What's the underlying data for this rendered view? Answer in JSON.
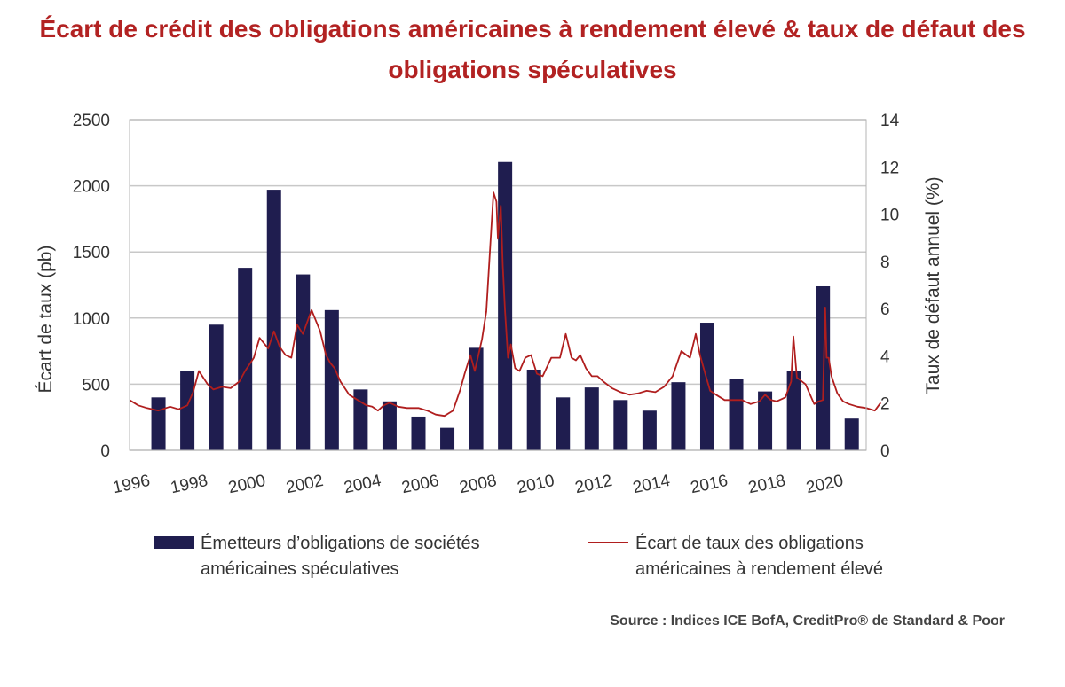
{
  "title": "Écart de crédit des obligations américaines à rendement élevé & taux de défaut des obligations spéculatives",
  "source": "Source : Indices ICE BofA, CreditPro® de Standard & Poor",
  "colors": {
    "bars": "#1f1d4f",
    "line": "#b01e1e",
    "grid": "#c8c8c8",
    "title": "#b22222"
  },
  "chart_data": {
    "type": "bar",
    "xlabel": "",
    "ylabel": "Écart de taux (pb)",
    "y2label": "Taux de défaut annuel (%)",
    "ylim": [
      0,
      2500
    ],
    "y2lim": [
      0,
      14
    ],
    "yticks": [
      "0",
      "500",
      "1000",
      "1500",
      "2000",
      "2500"
    ],
    "y2ticks": [
      "0",
      "2",
      "4",
      "6",
      "8",
      "10",
      "12",
      "14"
    ],
    "xticks": [
      "1996",
      "1998",
      "2000",
      "2002",
      "2004",
      "2006",
      "2008",
      "2010",
      "2012",
      "2014",
      "2016",
      "2018",
      "2020"
    ],
    "grid": true,
    "legend_position": "bottom",
    "series": [
      {
        "name": "Émetteurs d’obligations de sociétés américaines spéculatives",
        "type": "bar",
        "axis": "left",
        "categories": [
          "1997",
          "1998",
          "1999",
          "2000",
          "2001",
          "2002",
          "2003",
          "2004",
          "2005",
          "2006",
          "2007",
          "2008",
          "2009",
          "2010",
          "2011",
          "2012",
          "2013",
          "2014",
          "2015",
          "2016",
          "2017",
          "2018",
          "2019",
          "2020",
          "2021"
        ],
        "values": [
          400,
          600,
          950,
          1380,
          1970,
          1330,
          1060,
          460,
          370,
          255,
          170,
          775,
          2180,
          610,
          400,
          475,
          380,
          300,
          515,
          965,
          540,
          445,
          600,
          1240,
          240
        ]
      },
      {
        "name": "Écart de taux des obligations américaines à rendement élevé",
        "type": "line",
        "axis": "left",
        "x": [
          1996.0,
          1996.3,
          1996.6,
          1997.0,
          1997.4,
          1997.7,
          1998.0,
          1998.2,
          1998.4,
          1998.7,
          1998.9,
          1999.2,
          1999.5,
          1999.8,
          2000.0,
          2000.3,
          2000.5,
          2000.8,
          2001.0,
          2001.2,
          2001.4,
          2001.6,
          2001.8,
          2002.0,
          2002.3,
          2002.6,
          2002.8,
          2002.95,
          2003.1,
          2003.3,
          2003.6,
          2003.9,
          2004.2,
          2004.4,
          2004.6,
          2004.8,
          2005.0,
          2005.3,
          2005.6,
          2006.0,
          2006.3,
          2006.6,
          2006.9,
          2007.2,
          2007.45,
          2007.6,
          2007.8,
          2007.95,
          2008.2,
          2008.35,
          2008.5,
          2008.6,
          2008.7,
          2008.75,
          2008.85,
          2008.92,
          2009.0,
          2009.1,
          2009.2,
          2009.35,
          2009.5,
          2009.7,
          2009.9,
          2010.1,
          2010.3,
          2010.6,
          2010.9,
          2011.1,
          2011.3,
          2011.45,
          2011.6,
          2011.8,
          2012.0,
          2012.2,
          2012.4,
          2012.7,
          2013.0,
          2013.3,
          2013.6,
          2013.9,
          2014.2,
          2014.5,
          2014.8,
          2015.1,
          2015.4,
          2015.6,
          2015.75,
          2015.95,
          2016.1,
          2016.3,
          2016.6,
          2016.9,
          2017.2,
          2017.5,
          2017.8,
          2018.0,
          2018.2,
          2018.4,
          2018.7,
          2018.9,
          2018.98,
          2019.1,
          2019.4,
          2019.7,
          2019.85,
          2020.0,
          2020.08,
          2020.13,
          2020.2,
          2020.3,
          2020.5,
          2020.7,
          2020.9,
          2021.2,
          2021.5,
          2021.8,
          2022.0
        ],
        "values": [
          380,
          340,
          320,
          300,
          330,
          310,
          340,
          440,
          600,
          500,
          460,
          480,
          470,
          520,
          600,
          700,
          850,
          770,
          900,
          780,
          720,
          700,
          950,
          880,
          1060,
          900,
          720,
          660,
          620,
          520,
          420,
          380,
          340,
          330,
          300,
          340,
          360,
          330,
          320,
          320,
          300,
          270,
          260,
          300,
          460,
          580,
          720,
          600,
          840,
          1050,
          1600,
          1950,
          1880,
          1600,
          1850,
          1400,
          1050,
          700,
          800,
          620,
          600,
          700,
          720,
          580,
          560,
          700,
          700,
          880,
          700,
          680,
          720,
          620,
          560,
          560,
          520,
          470,
          440,
          420,
          430,
          450,
          440,
          480,
          560,
          750,
          700,
          880,
          720,
          560,
          450,
          420,
          380,
          380,
          380,
          350,
          370,
          420,
          380,
          370,
          400,
          520,
          860,
          550,
          500,
          350,
          370,
          380,
          1080,
          700,
          700,
          560,
          430,
          370,
          350,
          330,
          320,
          300,
          360
        ]
      }
    ]
  },
  "legend": {
    "bars_line1": "Émetteurs d’obligations de sociétés",
    "bars_line2": "américaines spéculatives",
    "line_line1": "Écart de taux des obligations",
    "line_line2": "américaines à rendement élevé"
  }
}
